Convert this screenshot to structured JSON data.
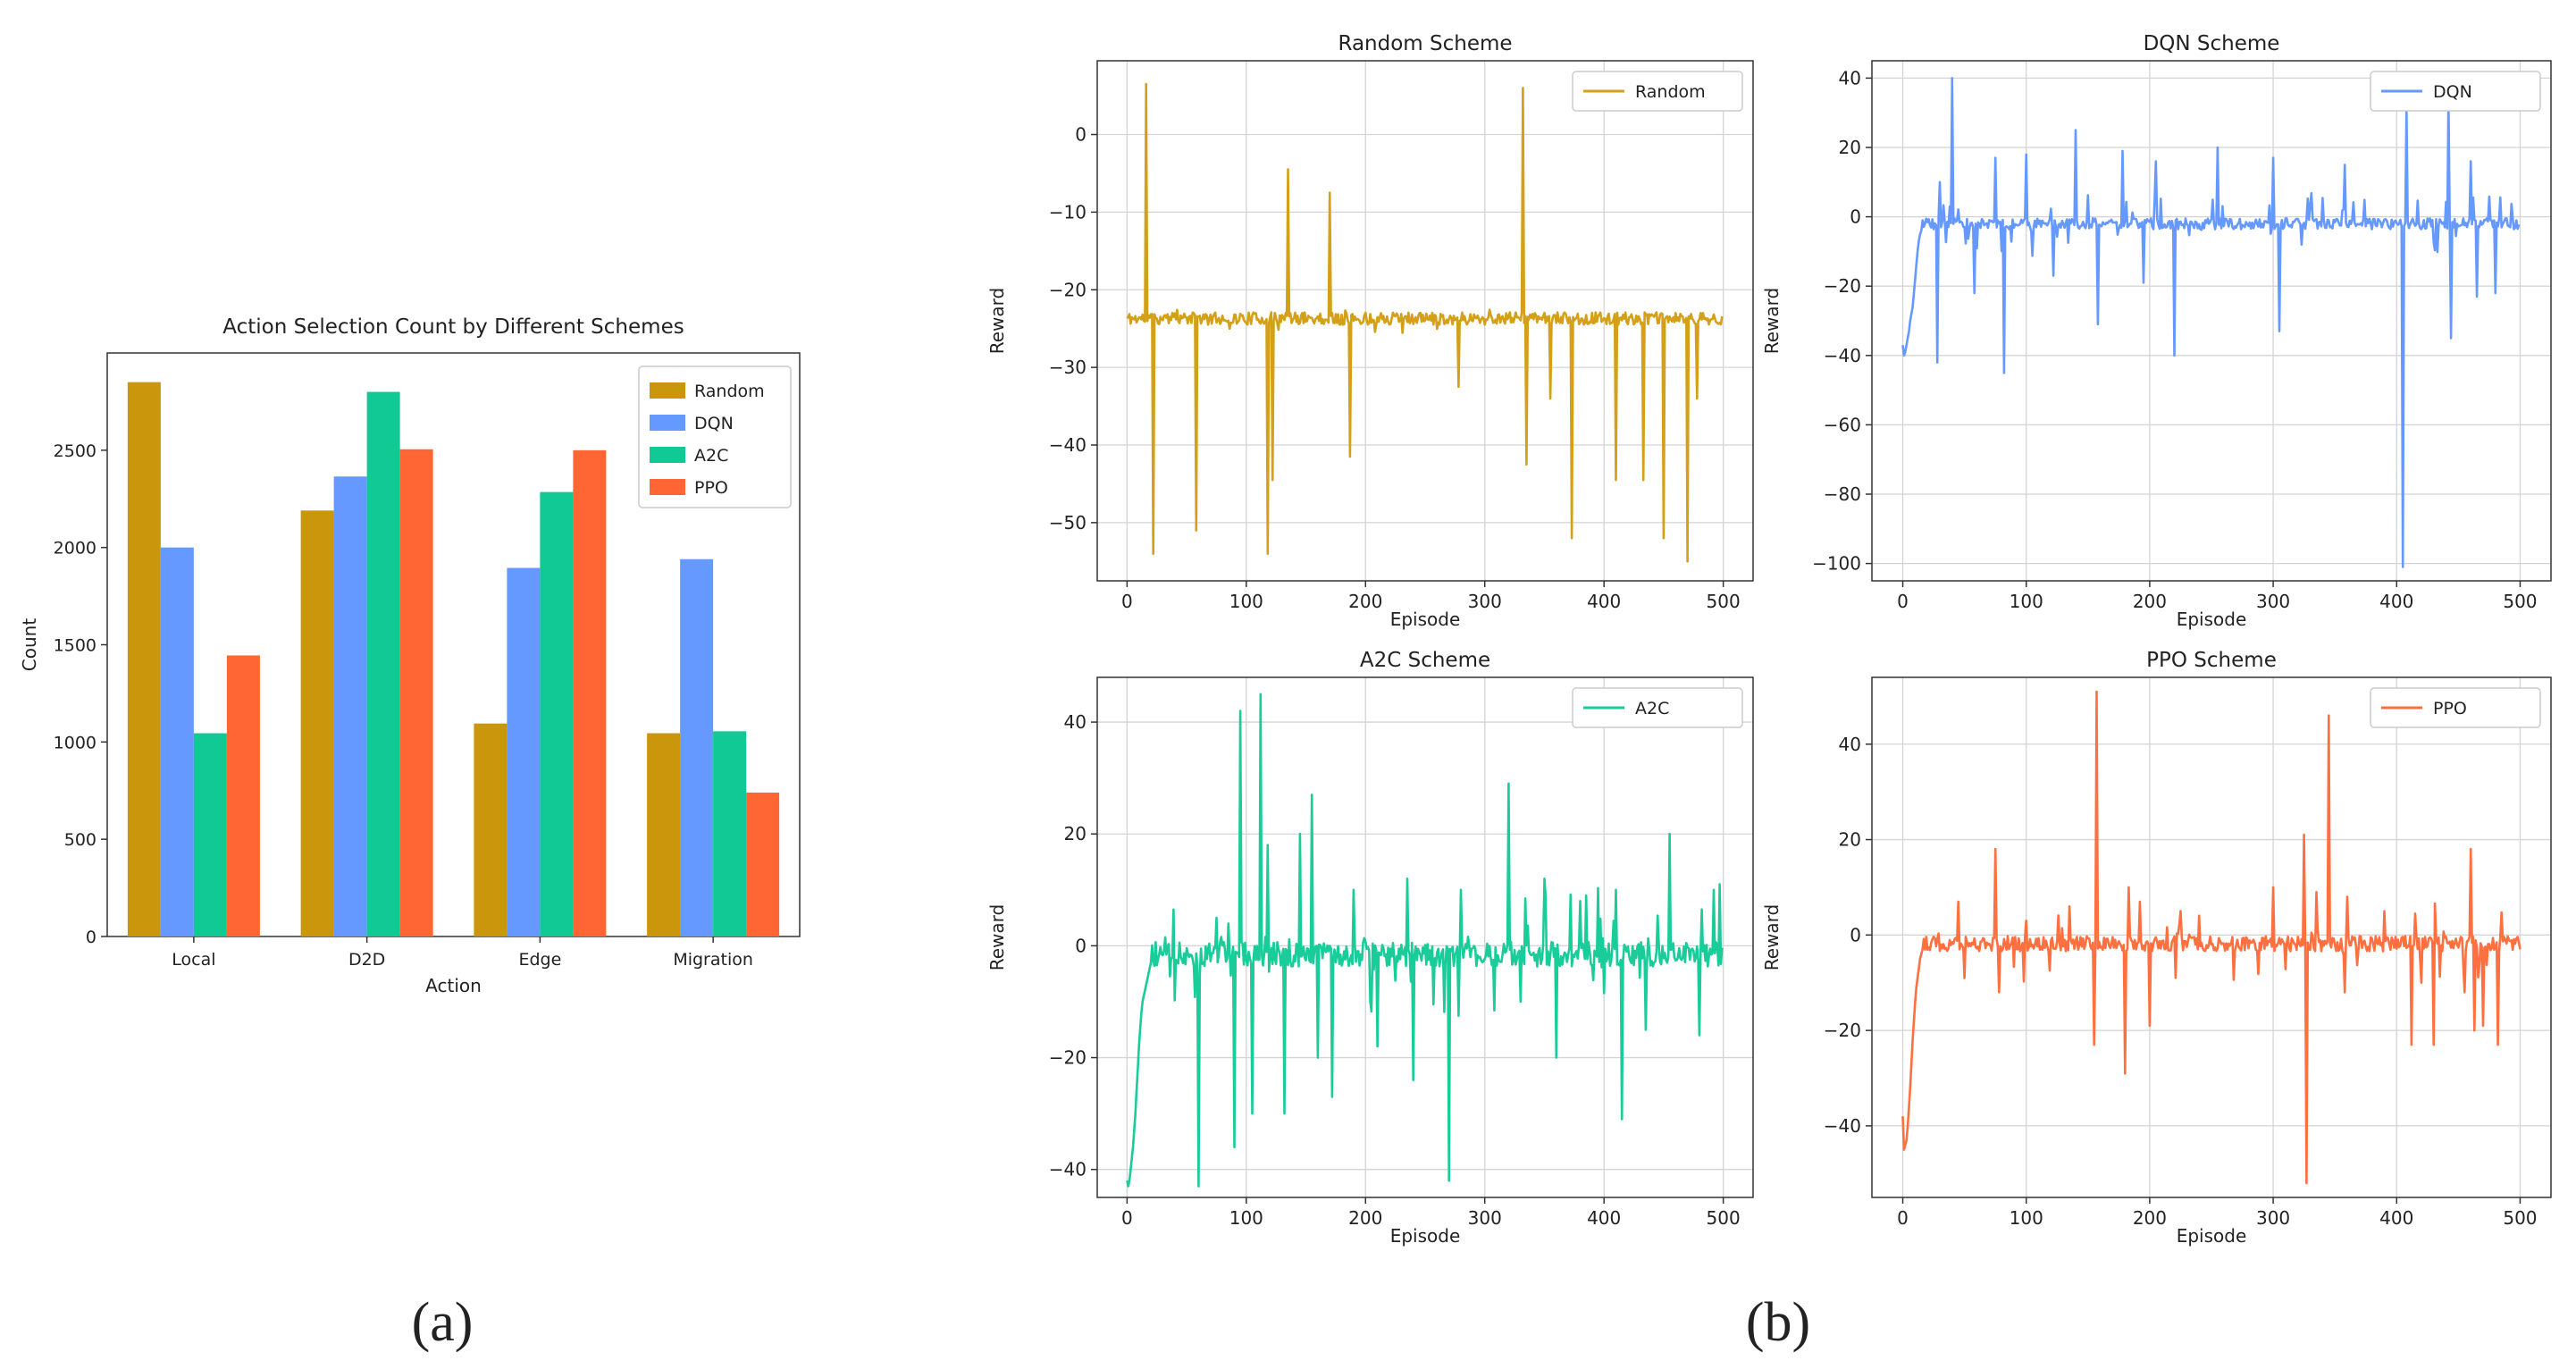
{
  "figure": {
    "label_a": "(a)",
    "label_b": "(b)"
  },
  "chart_data": [
    {
      "id": "bar",
      "type": "bar",
      "title": "Action Selection Count by Different Schemes",
      "xlabel": "Action",
      "ylabel": "Count",
      "categories": [
        "Local",
        "D2D",
        "Edge",
        "Migration"
      ],
      "ylim": [
        0,
        3000
      ],
      "yticks": [
        0,
        500,
        1000,
        1500,
        2000,
        2500
      ],
      "legend_position": "top-right",
      "series": [
        {
          "name": "Random",
          "color": "#C9960C",
          "values": [
            2850,
            2190,
            1095,
            1045
          ]
        },
        {
          "name": "DQN",
          "color": "#6699FF",
          "values": [
            2000,
            2365,
            1895,
            1940
          ]
        },
        {
          "name": "A2C",
          "color": "#10C995",
          "values": [
            1045,
            2800,
            2285,
            1055
          ]
        },
        {
          "name": "PPO",
          "color": "#FF6633",
          "values": [
            1445,
            2505,
            2500,
            740
          ]
        }
      ]
    },
    {
      "id": "random",
      "type": "line",
      "title": "Random Scheme",
      "xlabel": "Episode",
      "ylabel": "Reward",
      "series_name": "Random",
      "color": "#D4A017",
      "xlim": [
        -25,
        525
      ],
      "ylim": [
        -57.5,
        9.5
      ],
      "xticks": [
        0,
        100,
        200,
        300,
        400,
        500
      ],
      "yticks": [
        0,
        -10,
        -20,
        -30,
        -40,
        -50
      ],
      "legend_position": "top-right",
      "baseline": -23.7,
      "start_values": [],
      "spikes": [
        [
          16,
          6.5
        ],
        [
          22,
          -54
        ],
        [
          58,
          -51
        ],
        [
          118,
          -54
        ],
        [
          122,
          -44.5
        ],
        [
          135,
          -4.5
        ],
        [
          170,
          -7.5
        ],
        [
          187,
          -41.5
        ],
        [
          278,
          -32.5
        ],
        [
          332,
          6
        ],
        [
          335,
          -42.5
        ],
        [
          355,
          -34
        ],
        [
          373,
          -52
        ],
        [
          410,
          -44.5
        ],
        [
          433,
          -44.5
        ],
        [
          450,
          -52
        ],
        [
          470,
          -55
        ],
        [
          478,
          -34
        ]
      ],
      "noise": 0.8,
      "spike_chance": 0.03,
      "spike_range": [
        -2,
        1.5
      ],
      "seed": 11
    },
    {
      "id": "dqn",
      "type": "line",
      "title": "DQN Scheme",
      "xlabel": "Episode",
      "ylabel": "Reward",
      "series_name": "DQN",
      "color": "#6699FF",
      "xlim": [
        -25,
        525
      ],
      "ylim": [
        -105,
        45
      ],
      "xticks": [
        0,
        100,
        200,
        300,
        400,
        500
      ],
      "yticks": [
        40,
        20,
        0,
        -20,
        -40,
        -60,
        -80,
        -100
      ],
      "legend_position": "top-right",
      "baseline": -2,
      "start_values": [
        -37,
        -40,
        -39,
        -37,
        -35,
        -33,
        -30,
        -28,
        -26,
        -22,
        -18,
        -14,
        -10,
        -7,
        -5,
        -4
      ],
      "spikes": [
        [
          28,
          -42
        ],
        [
          30,
          10
        ],
        [
          38,
          3
        ],
        [
          40,
          40
        ],
        [
          58,
          -22
        ],
        [
          75,
          17
        ],
        [
          82,
          -45
        ],
        [
          100,
          18
        ],
        [
          122,
          -17
        ],
        [
          140,
          25
        ],
        [
          158,
          -31
        ],
        [
          178,
          19
        ],
        [
          195,
          -19
        ],
        [
          205,
          16
        ],
        [
          220,
          -40
        ],
        [
          255,
          20
        ],
        [
          300,
          17
        ],
        [
          305,
          -33
        ],
        [
          358,
          15
        ],
        [
          405,
          -101
        ],
        [
          408,
          31
        ],
        [
          442,
          34
        ],
        [
          444,
          -35
        ],
        [
          460,
          16
        ],
        [
          465,
          -23
        ],
        [
          480,
          -22
        ]
      ],
      "noise": 1.6,
      "spike_chance": 0.09,
      "spike_range": [
        -9,
        9
      ],
      "seed": 23
    },
    {
      "id": "a2c",
      "type": "line",
      "title": "A2C Scheme",
      "xlabel": "Episode",
      "ylabel": "Reward",
      "series_name": "A2C",
      "color": "#1ACC99",
      "xlim": [
        -25,
        525
      ],
      "ylim": [
        -45,
        48
      ],
      "xticks": [
        0,
        100,
        200,
        300,
        400,
        500
      ],
      "yticks": [
        40,
        20,
        0,
        -20,
        -40
      ],
      "legend_position": "top-right",
      "baseline": -1.5,
      "start_values": [
        -42,
        -43,
        -42,
        -40,
        -38,
        -36,
        -33,
        -30,
        -26,
        -22,
        -18,
        -15,
        -12,
        -10,
        -9,
        -8,
        -7,
        -6,
        -5,
        -4,
        -3
      ],
      "spikes": [
        [
          60,
          -43
        ],
        [
          75,
          5
        ],
        [
          85,
          4
        ],
        [
          90,
          -36
        ],
        [
          95,
          42
        ],
        [
          105,
          -30
        ],
        [
          112,
          45
        ],
        [
          118,
          18
        ],
        [
          132,
          -30
        ],
        [
          145,
          20
        ],
        [
          155,
          27
        ],
        [
          160,
          -20
        ],
        [
          172,
          -27
        ],
        [
          190,
          10
        ],
        [
          210,
          -18
        ],
        [
          235,
          12
        ],
        [
          240,
          -24
        ],
        [
          270,
          -42
        ],
        [
          280,
          10
        ],
        [
          320,
          29
        ],
        [
          330,
          -10
        ],
        [
          350,
          12
        ],
        [
          360,
          -20
        ],
        [
          380,
          8
        ],
        [
          410,
          10
        ],
        [
          415,
          -31
        ],
        [
          435,
          -15
        ],
        [
          455,
          20
        ],
        [
          480,
          -16
        ],
        [
          492,
          10
        ],
        [
          497,
          11
        ]
      ],
      "noise": 2.2,
      "spike_chance": 0.12,
      "spike_range": [
        -10,
        10
      ],
      "seed": 37
    },
    {
      "id": "ppo",
      "type": "line",
      "title": "PPO Scheme",
      "xlabel": "Episode",
      "ylabel": "Reward",
      "series_name": "PPO",
      "color": "#FF7040",
      "xlim": [
        -25,
        525
      ],
      "ylim": [
        -55,
        54
      ],
      "xticks": [
        0,
        100,
        200,
        300,
        400,
        500
      ],
      "yticks": [
        40,
        20,
        0,
        -20,
        -40
      ],
      "legend_position": "top-right",
      "baseline": -1.8,
      "start_values": [
        -38,
        -45,
        -44,
        -43,
        -40,
        -36,
        -32,
        -27,
        -22,
        -18,
        -14,
        -11,
        -9,
        -7,
        -5,
        -4,
        -3
      ],
      "spikes": [
        [
          45,
          7
        ],
        [
          75,
          18
        ],
        [
          78,
          -12
        ],
        [
          100,
          3
        ],
        [
          135,
          6
        ],
        [
          155,
          -23
        ],
        [
          157,
          51
        ],
        [
          180,
          -29
        ],
        [
          183,
          10
        ],
        [
          192,
          7
        ],
        [
          200,
          -19
        ],
        [
          225,
          5
        ],
        [
          300,
          10
        ],
        [
          325,
          21
        ],
        [
          327,
          -52
        ],
        [
          335,
          9
        ],
        [
          345,
          46
        ],
        [
          358,
          -12
        ],
        [
          360,
          8
        ],
        [
          390,
          5
        ],
        [
          412,
          -23
        ],
        [
          420,
          4
        ],
        [
          420,
          -10
        ],
        [
          430,
          -23
        ],
        [
          455,
          -12
        ],
        [
          460,
          18
        ],
        [
          463,
          -20
        ],
        [
          470,
          -19
        ],
        [
          482,
          -23
        ],
        [
          500,
          -3
        ]
      ],
      "noise": 1.6,
      "spike_chance": 0.08,
      "spike_range": [
        -8,
        8
      ],
      "seed": 53
    }
  ]
}
